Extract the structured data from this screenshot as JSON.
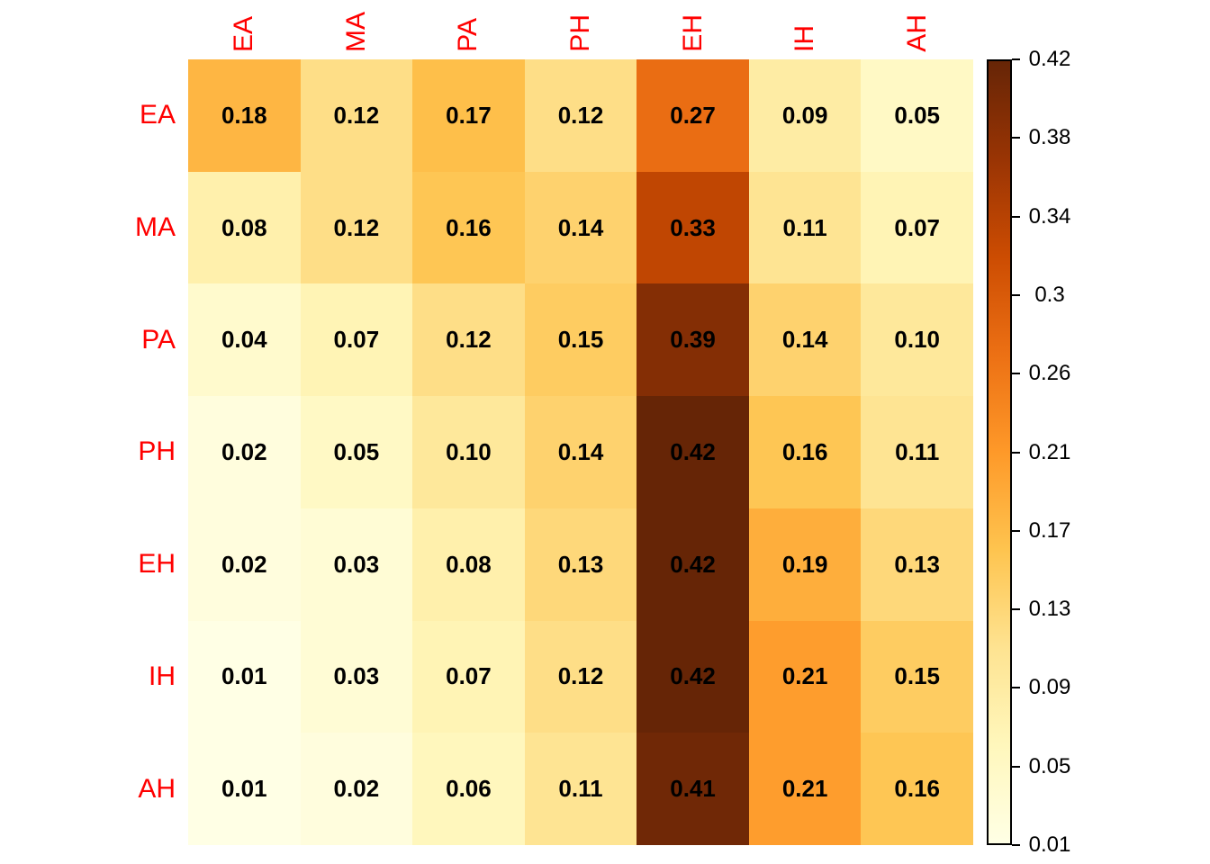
{
  "chart_data": {
    "type": "heatmap",
    "title": "",
    "row_labels": [
      "EA",
      "MA",
      "PA",
      "PH",
      "EH",
      "IH",
      "AH"
    ],
    "col_labels": [
      "EA",
      "MA",
      "PA",
      "PH",
      "EH",
      "IH",
      "AH"
    ],
    "values": [
      [
        0.18,
        0.12,
        0.17,
        0.12,
        0.27,
        0.09,
        0.05
      ],
      [
        0.08,
        0.12,
        0.16,
        0.14,
        0.33,
        0.11,
        0.07
      ],
      [
        0.04,
        0.07,
        0.12,
        0.15,
        0.39,
        0.14,
        0.1
      ],
      [
        0.02,
        0.05,
        0.1,
        0.14,
        0.42,
        0.16,
        0.11
      ],
      [
        0.02,
        0.03,
        0.08,
        0.13,
        0.42,
        0.19,
        0.13
      ],
      [
        0.01,
        0.03,
        0.07,
        0.12,
        0.42,
        0.21,
        0.15
      ],
      [
        0.01,
        0.02,
        0.06,
        0.11,
        0.41,
        0.21,
        0.16
      ]
    ],
    "value_decimals": 2,
    "colorbar": {
      "min": 0.01,
      "max": 0.42,
      "tick_labels": [
        "0.42",
        "0.38",
        "0.34",
        "0.3",
        "0.26",
        "0.21",
        "0.17",
        "0.13",
        "0.09",
        "0.05",
        "0.01"
      ],
      "position": "right"
    },
    "colormap": {
      "name": "YlOrBr",
      "stops": [
        "#FFFFE5",
        "#FFF7BC",
        "#FEE391",
        "#FEC44F",
        "#FE9929",
        "#EC7014",
        "#CC4C02",
        "#993404",
        "#662506"
      ]
    },
    "colors": {
      "axis_label": "#FF0000",
      "cell_text": "#000000",
      "tick_text": "#000000",
      "background": "#FFFFFF"
    },
    "legend_position": "right",
    "grid": false
  }
}
